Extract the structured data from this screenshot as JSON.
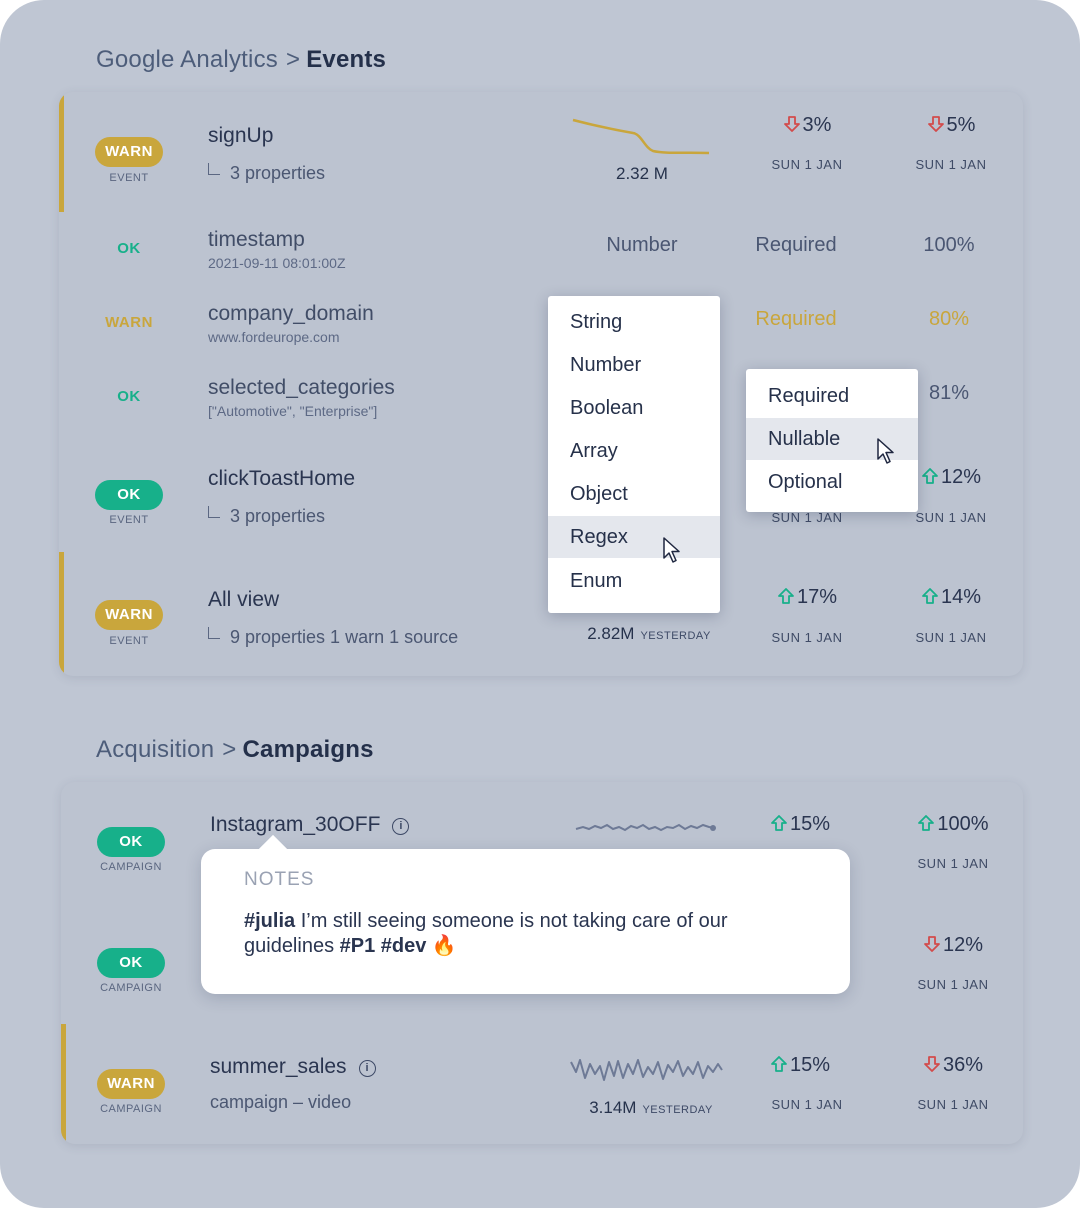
{
  "colors": {
    "warn": "#c9a63c",
    "ok": "#17b08a",
    "down": "#d24b4b",
    "up": "#17b08a"
  },
  "events_section": {
    "breadcrumb_parent": "Google Analytics",
    "breadcrumb_sep": ">",
    "breadcrumb_current": "Events"
  },
  "events": {
    "signup": {
      "status": "WARN",
      "kind": "EVENT",
      "name": "signUp",
      "props": "3 properties",
      "total": "2.32 M",
      "pct1": "3%",
      "pct1_dir": "down",
      "date1": "SUN 1 JAN",
      "pct2": "5%",
      "pct2_dir": "down",
      "date2": "SUN 1 JAN"
    },
    "timestamp": {
      "status": "OK",
      "name": "timestamp",
      "example": "2021-09-11 08:01:00Z",
      "type": "Number",
      "requirement": "Required",
      "coverage": "100%"
    },
    "company_domain": {
      "status": "WARN",
      "name": "company_domain",
      "example": "www.fordeurope.com",
      "requirement": "Required",
      "coverage": "80%"
    },
    "selected_categories": {
      "status": "OK",
      "name": "selected_categories",
      "example": "[\"Automotive\", \"Enterprise\"]",
      "coverage": "81%"
    },
    "click_toast_home": {
      "status": "OK",
      "kind": "EVENT",
      "name": "clickToastHome",
      "props": "3 properties",
      "date1": "SUN 1 JAN",
      "pct2": "12%",
      "pct2_dir": "up",
      "date2": "SUN 1 JAN"
    },
    "all_view": {
      "status": "WARN",
      "kind": "EVENT",
      "name": "All view",
      "props": "9 properties 1 warn 1 source",
      "total": "2.82M",
      "total_when": "YESTERDAY",
      "pct1": "17%",
      "pct1_dir": "up",
      "date1": "SUN 1 JAN",
      "pct2": "14%",
      "pct2_dir": "up",
      "date2": "SUN 1 JAN"
    }
  },
  "type_menu": {
    "items": [
      "String",
      "Number",
      "Boolean",
      "Array",
      "Object",
      "Regex",
      "Enum"
    ],
    "hovered": "Regex"
  },
  "requirement_menu": {
    "items": [
      "Required",
      "Nullable",
      "Optional"
    ],
    "hovered": "Nullable"
  },
  "campaigns_section": {
    "breadcrumb_parent": "Acquisition",
    "breadcrumb_sep": ">",
    "breadcrumb_current": "Campaigns"
  },
  "campaigns": {
    "instagram": {
      "status": "OK",
      "kind": "CAMPAIGN",
      "name": "Instagram_30OFF",
      "pct1": "15%",
      "pct1_dir": "up",
      "pct2": "100%",
      "pct2_dir": "up",
      "date2": "SUN 1 JAN"
    },
    "second": {
      "status": "OK",
      "kind": "CAMPAIGN",
      "pct2": "12%",
      "pct2_dir": "down",
      "date2": "SUN 1 JAN"
    },
    "summer_sales": {
      "status": "WARN",
      "kind": "CAMPAIGN",
      "name": "summer_sales",
      "sub": "campaign – video",
      "total": "3.14M",
      "total_when": "YESTERDAY",
      "pct1": "15%",
      "pct1_dir": "up",
      "date1": "SUN 1 JAN",
      "pct2": "36%",
      "pct2_dir": "down",
      "date2": "SUN 1 JAN"
    }
  },
  "notes": {
    "header": "NOTES",
    "mention": "#julia",
    "text": " I’m still seeing someone is not taking care of our guidelines ",
    "tags": "#P1 #dev",
    "emoji": "🔥"
  },
  "icons": {
    "down_arrow": "arrow-down-icon",
    "up_arrow": "arrow-up-icon",
    "info": "info-icon",
    "cursor": "cursor-icon",
    "flame": "fire-emoji-icon",
    "sparkline": "sparkline-icon"
  }
}
